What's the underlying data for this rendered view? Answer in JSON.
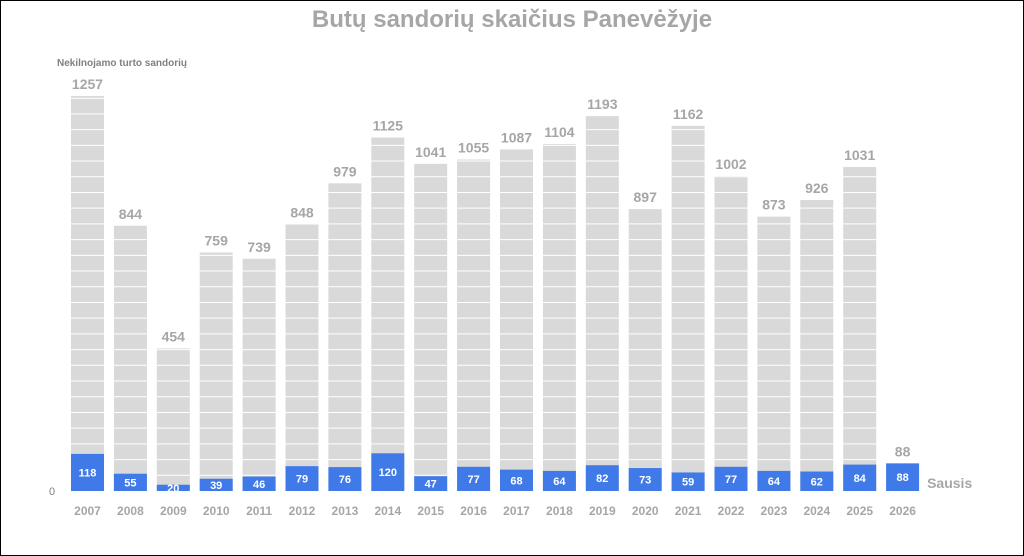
{
  "chart_data": {
    "type": "bar",
    "title": "Butų sandorių skaičius Panevėžyje",
    "ylabel": "Nekilnojamo turto sandorių",
    "ylim": [
      0,
      1257
    ],
    "y_tick_labels": [
      "0"
    ],
    "grid": false,
    "categories": [
      "2007",
      "2008",
      "2009",
      "2010",
      "2011",
      "2012",
      "2013",
      "2014",
      "2015",
      "2016",
      "2017",
      "2018",
      "2019",
      "2020",
      "2021",
      "2022",
      "2023",
      "2024",
      "2025",
      "2026"
    ],
    "series": [
      {
        "name": "",
        "color": "#d9d9d9",
        "values": [
          1257,
          844,
          454,
          759,
          739,
          848,
          979,
          1125,
          1041,
          1055,
          1087,
          1104,
          1193,
          897,
          1162,
          1002,
          873,
          926,
          1031,
          88
        ]
      },
      {
        "name": "Sausis",
        "color": "#3f7ae8",
        "values": [
          118,
          55,
          20,
          39,
          46,
          79,
          76,
          120,
          47,
          77,
          68,
          64,
          82,
          73,
          59,
          77,
          64,
          62,
          84,
          88
        ]
      }
    ],
    "annotation": "Sausis"
  }
}
